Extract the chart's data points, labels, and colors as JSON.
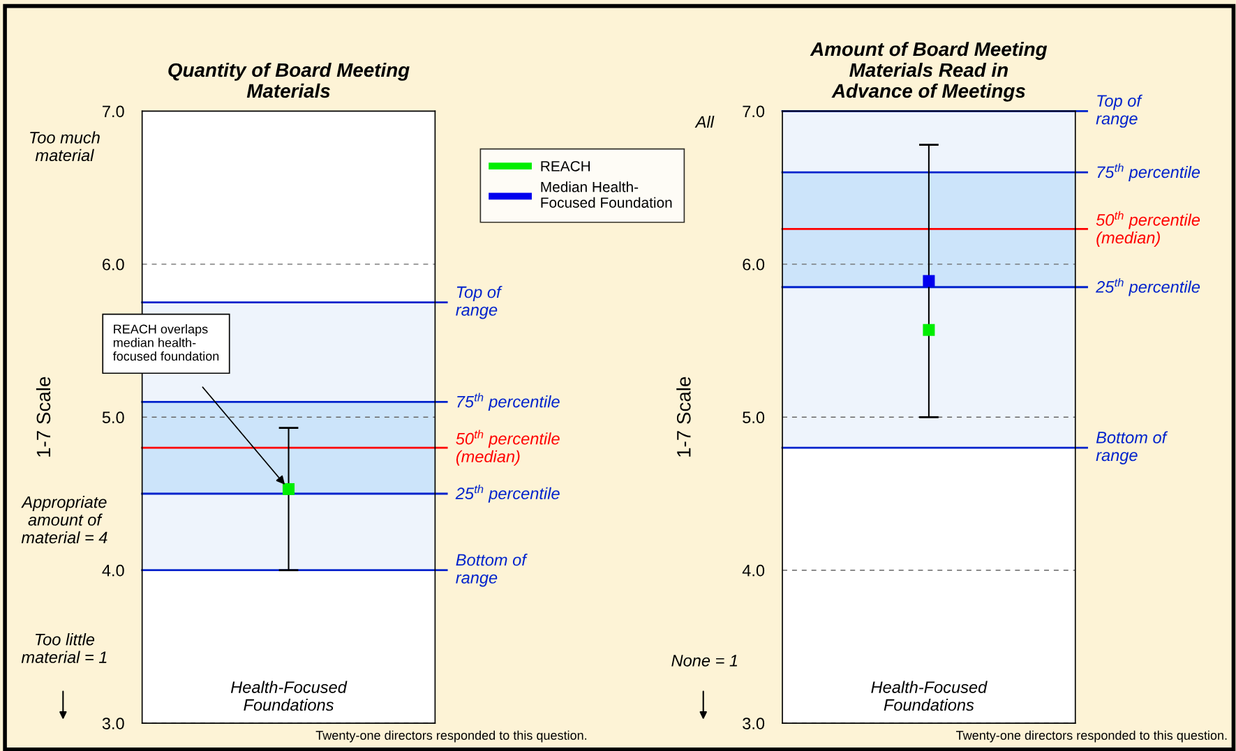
{
  "chart_data": [
    {
      "type": "scatter",
      "title": "Quantity of Board Meeting\nMaterials",
      "ylabel": "1-7 Scale",
      "categories": [
        "Health-Focused\nFoundations"
      ],
      "series": [
        {
          "name": "REACH",
          "color": "#00ee00",
          "values": [
            4.53
          ],
          "errors": [
            [
              4.0,
              4.93
            ]
          ]
        },
        {
          "name": "Median Health-\nFocused Foundation",
          "color": "#0000ee",
          "values": [
            null
          ]
        }
      ],
      "ylim": [
        3,
        7
      ],
      "yticks": [
        {
          "value": 3,
          "label": "3.0"
        },
        {
          "value": 4,
          "label": "4.0"
        },
        {
          "value": 5,
          "label": "5.0"
        },
        {
          "value": 6,
          "label": "6.0"
        },
        {
          "value": 7,
          "label": "7.0"
        }
      ],
      "tick_labels": "y",
      "grid": "y",
      "legend": "right",
      "marker": "square",
      "bands": [
        {
          "axis": "y",
          "from": 4.0,
          "to": 5.75,
          "color": "#eef4fc"
        },
        {
          "axis": "y",
          "from": 4.5,
          "to": 5.1,
          "color": "#cce4fa"
        }
      ],
      "ref_lines": [
        {
          "axis": "y",
          "value": 5.75,
          "label": "Top of\nrange",
          "color": "#0022cc"
        },
        {
          "axis": "y",
          "value": 5.1,
          "label": "75$^{th}$ percentile",
          "color": "#0022cc"
        },
        {
          "axis": "y",
          "value": 4.8,
          "label": "50$^{th}$ percentile\n(median)",
          "color": "#ff0000"
        },
        {
          "axis": "y",
          "value": 4.5,
          "label": "25$^{th}$ percentile",
          "color": "#0022cc"
        },
        {
          "axis": "y",
          "value": 4.0,
          "label": "Bottom of\nrange",
          "color": "#0022cc"
        }
      ],
      "annotations": [
        "Too much\nmaterial",
        "Appropriate\namount of\nmaterial = 4",
        "Too little\nmaterial = 1",
        "Twenty-one directors responded to this question.",
        "REACH overlaps\nmedian health-\nfocused foundation"
      ]
    },
    {
      "type": "scatter",
      "title": "Amount of Board Meeting\nMaterials Read in\nAdvance of Meetings",
      "ylabel": "1-7 Scale",
      "categories": [
        "Health-Focused\nFoundations"
      ],
      "series": [
        {
          "color": "#00ee00",
          "values": [
            5.57
          ],
          "errors": [
            [
              5.0,
              6.78
            ]
          ]
        },
        {
          "color": "#0000ee",
          "values": [
            5.89
          ]
        }
      ],
      "ylim": [
        3,
        7
      ],
      "yticks": [
        {
          "value": 3,
          "label": "3.0"
        },
        {
          "value": 4,
          "label": "4.0"
        },
        {
          "value": 5,
          "label": "5.0"
        },
        {
          "value": 6,
          "label": "6.0"
        },
        {
          "value": 7,
          "label": "7.0"
        }
      ],
      "tick_labels": "y",
      "grid": "y",
      "marker": "square",
      "bands": [
        {
          "axis": "y",
          "from": 4.8,
          "to": 7.0,
          "color": "#eef4fc"
        },
        {
          "axis": "y",
          "from": 5.85,
          "to": 6.6,
          "color": "#cce4fa"
        }
      ],
      "ref_lines": [
        {
          "axis": "y",
          "value": 7.0,
          "label": "Top of\nrange",
          "color": "#0022cc"
        },
        {
          "axis": "y",
          "value": 6.6,
          "label": "75$^{th}$ percentile",
          "color": "#0022cc"
        },
        {
          "axis": "y",
          "value": 6.23,
          "label": "50$^{th}$ percentile\n(median)",
          "color": "#ff0000"
        },
        {
          "axis": "y",
          "value": 5.85,
          "label": "25$^{th}$ percentile",
          "color": "#0022cc"
        },
        {
          "axis": "y",
          "value": 4.8,
          "label": "Bottom of\nrange",
          "color": "#0022cc"
        }
      ],
      "annotations": [
        "All",
        "None = 1",
        "Twenty-one directors responded to this question."
      ]
    }
  ]
}
